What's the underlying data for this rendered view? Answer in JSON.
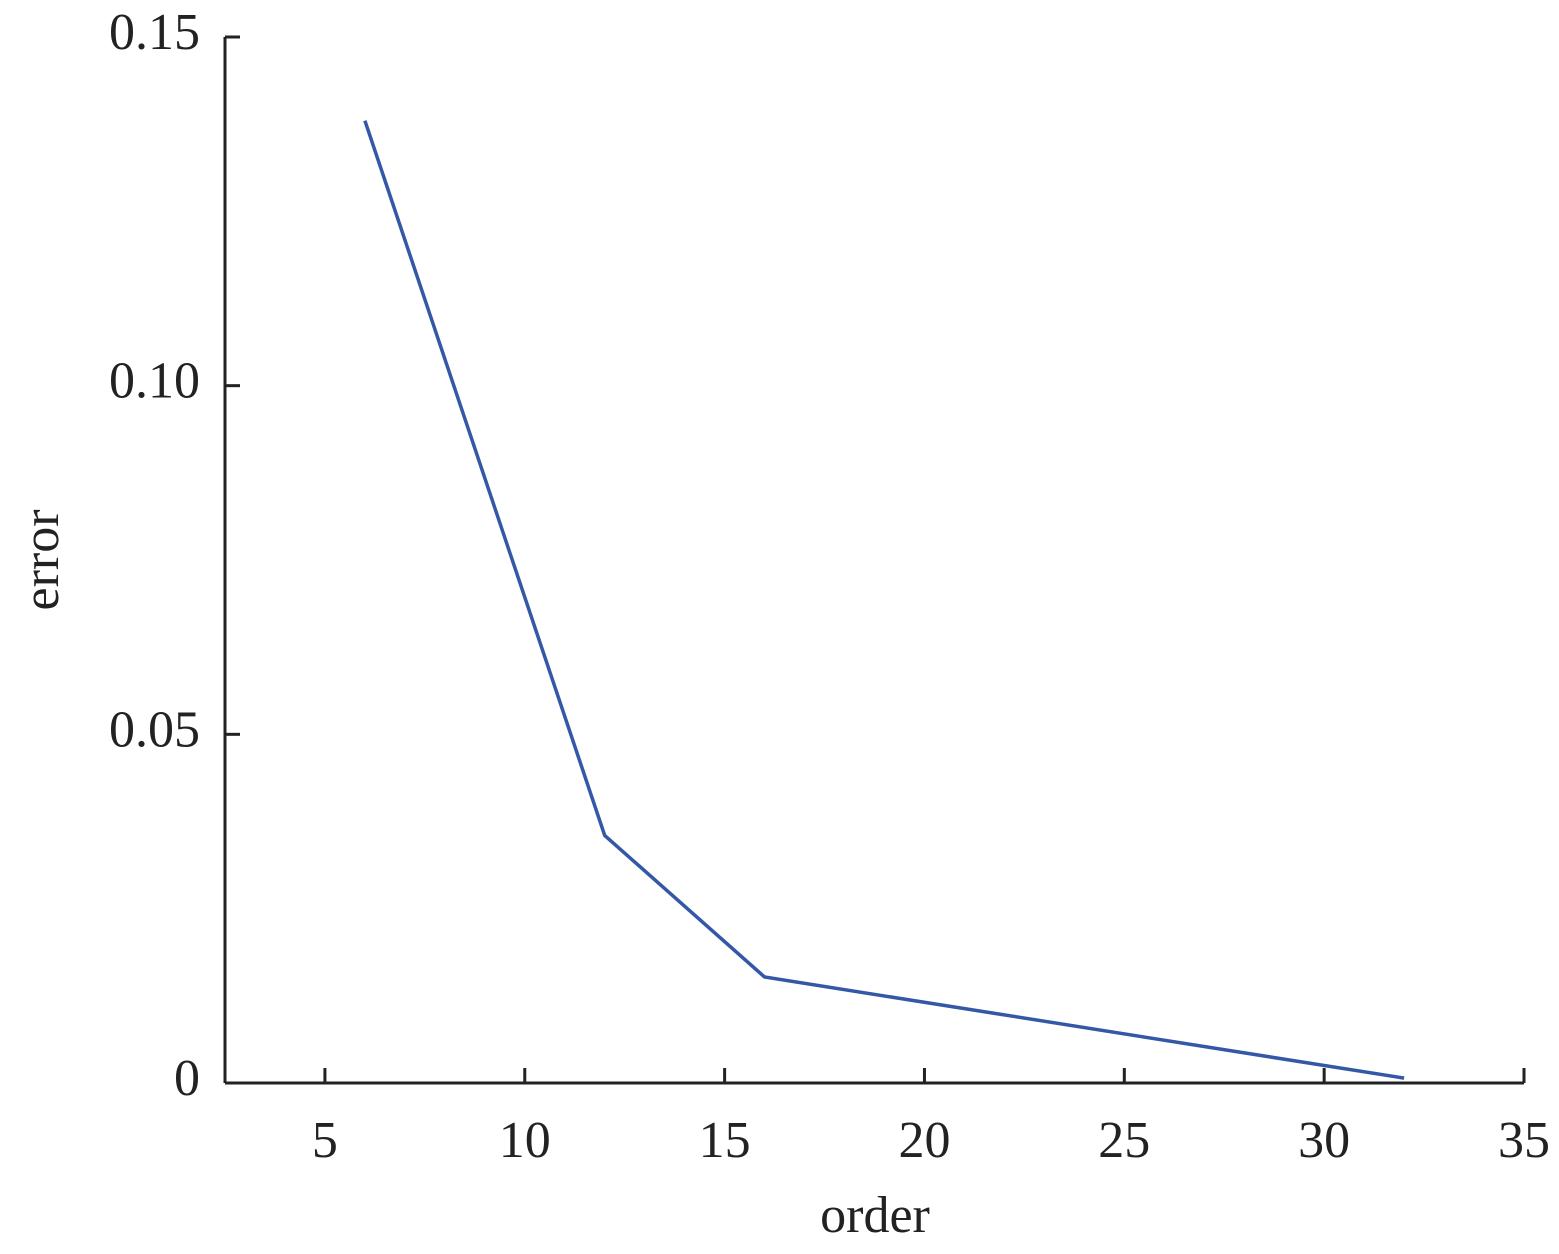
{
  "chart_data": {
    "type": "line",
    "x_label": "order",
    "y_label": "error",
    "x": [
      6,
      12,
      16,
      32
    ],
    "values": [
      0.138,
      0.0355,
      0.0152,
      0.0007
    ],
    "color": "#3457a6",
    "xlim": [
      2.5,
      35
    ],
    "xticks": [
      5,
      10,
      15,
      20,
      25,
      30,
      35
    ],
    "ylim": [
      0,
      0.15
    ],
    "yticks": [
      0,
      0.05,
      {
        "value": 0.1,
        "label": "0.10"
      },
      0.15
    ],
    "grid": false
  }
}
